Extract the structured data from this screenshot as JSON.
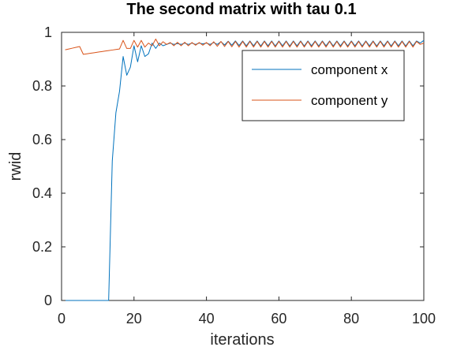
{
  "chart_data": {
    "type": "line",
    "title": "The second matrix with tau 0.1",
    "xlabel": "iterations",
    "ylabel": "rwid",
    "xlim": [
      0,
      100
    ],
    "ylim": [
      0,
      1
    ],
    "xticks": [
      "0",
      "20",
      "40",
      "60",
      "80",
      "100"
    ],
    "yticks": [
      "0",
      "0.2",
      "0.4",
      "0.6",
      "0.8",
      "1"
    ],
    "grid": false,
    "legend_position": "top-right",
    "series": [
      {
        "name": "component x",
        "color": "#0072BD",
        "points": [
          [
            0,
            0
          ],
          [
            1,
            0
          ],
          [
            2,
            0
          ],
          [
            3,
            0
          ],
          [
            4,
            0
          ],
          [
            5,
            0
          ],
          [
            6,
            0
          ],
          [
            7,
            0
          ],
          [
            8,
            0
          ],
          [
            9,
            0
          ],
          [
            10,
            0
          ],
          [
            11,
            0
          ],
          [
            12,
            0
          ],
          [
            13,
            0
          ],
          [
            14,
            0.52
          ],
          [
            15,
            0.7
          ],
          [
            16,
            0.78
          ],
          [
            17,
            0.91
          ],
          [
            18,
            0.84
          ],
          [
            19,
            0.87
          ],
          [
            20,
            0.95
          ],
          [
            21,
            0.89
          ],
          [
            22,
            0.95
          ],
          [
            23,
            0.91
          ],
          [
            24,
            0.92
          ],
          [
            25,
            0.96
          ],
          [
            26,
            0.94
          ],
          [
            27,
            0.96
          ],
          [
            28,
            0.95
          ],
          [
            29,
            0.955
          ],
          [
            30,
            0.96
          ],
          [
            31,
            0.955
          ],
          [
            32,
            0.958
          ],
          [
            33,
            0.955
          ],
          [
            34,
            0.96
          ],
          [
            35,
            0.955
          ],
          [
            36,
            0.96
          ],
          [
            37,
            0.955
          ],
          [
            38,
            0.96
          ],
          [
            39,
            0.957
          ],
          [
            40,
            0.96
          ],
          [
            41,
            0.955
          ],
          [
            42,
            0.962
          ],
          [
            43,
            0.955
          ],
          [
            44,
            0.965
          ],
          [
            45,
            0.953
          ],
          [
            46,
            0.967
          ],
          [
            47,
            0.952
          ],
          [
            48,
            0.968
          ],
          [
            49,
            0.951
          ],
          [
            50,
            0.968
          ],
          [
            51,
            0.95
          ],
          [
            52,
            0.968
          ],
          [
            53,
            0.95
          ],
          [
            54,
            0.968
          ],
          [
            55,
            0.949
          ],
          [
            56,
            0.968
          ],
          [
            57,
            0.95
          ],
          [
            58,
            0.968
          ],
          [
            59,
            0.949
          ],
          [
            60,
            0.968
          ],
          [
            61,
            0.95
          ],
          [
            62,
            0.968
          ],
          [
            63,
            0.949
          ],
          [
            64,
            0.968
          ],
          [
            65,
            0.95
          ],
          [
            66,
            0.968
          ],
          [
            67,
            0.949
          ],
          [
            68,
            0.968
          ],
          [
            69,
            0.95
          ],
          [
            70,
            0.968
          ],
          [
            71,
            0.949
          ],
          [
            72,
            0.968
          ],
          [
            73,
            0.95
          ],
          [
            74,
            0.968
          ],
          [
            75,
            0.949
          ],
          [
            76,
            0.968
          ],
          [
            77,
            0.95
          ],
          [
            78,
            0.968
          ],
          [
            79,
            0.949
          ],
          [
            80,
            0.968
          ],
          [
            81,
            0.95
          ],
          [
            82,
            0.968
          ],
          [
            83,
            0.949
          ],
          [
            84,
            0.968
          ],
          [
            85,
            0.95
          ],
          [
            86,
            0.968
          ],
          [
            87,
            0.949
          ],
          [
            88,
            0.968
          ],
          [
            89,
            0.95
          ],
          [
            90,
            0.968
          ],
          [
            91,
            0.949
          ],
          [
            92,
            0.968
          ],
          [
            93,
            0.95
          ],
          [
            94,
            0.968
          ],
          [
            95,
            0.949
          ],
          [
            96,
            0.968
          ],
          [
            97,
            0.95
          ],
          [
            98,
            0.968
          ],
          [
            99,
            0.96
          ],
          [
            100,
            0.97
          ]
        ]
      },
      {
        "name": "component y",
        "color": "#D95319",
        "points": [
          [
            1,
            0.935
          ],
          [
            2,
            0.938
          ],
          [
            3,
            0.941
          ],
          [
            4,
            0.944
          ],
          [
            5,
            0.947
          ],
          [
            6,
            0.918
          ],
          [
            7,
            0.92
          ],
          [
            8,
            0.922
          ],
          [
            9,
            0.924
          ],
          [
            10,
            0.926
          ],
          [
            11,
            0.928
          ],
          [
            12,
            0.93
          ],
          [
            13,
            0.932
          ],
          [
            14,
            0.934
          ],
          [
            15,
            0.936
          ],
          [
            16,
            0.938
          ],
          [
            17,
            0.97
          ],
          [
            18,
            0.94
          ],
          [
            19,
            0.94
          ],
          [
            20,
            0.97
          ],
          [
            21,
            0.945
          ],
          [
            22,
            0.97
          ],
          [
            23,
            0.945
          ],
          [
            24,
            0.96
          ],
          [
            25,
            0.95
          ],
          [
            26,
            0.975
          ],
          [
            27,
            0.95
          ],
          [
            28,
            0.965
          ],
          [
            29,
            0.955
          ],
          [
            30,
            0.962
          ],
          [
            31,
            0.95
          ],
          [
            32,
            0.963
          ],
          [
            33,
            0.95
          ],
          [
            34,
            0.963
          ],
          [
            35,
            0.95
          ],
          [
            36,
            0.962
          ],
          [
            37,
            0.952
          ],
          [
            38,
            0.962
          ],
          [
            39,
            0.952
          ],
          [
            40,
            0.962
          ],
          [
            41,
            0.95
          ],
          [
            42,
            0.965
          ],
          [
            43,
            0.948
          ],
          [
            44,
            0.966
          ],
          [
            45,
            0.947
          ],
          [
            46,
            0.966
          ],
          [
            47,
            0.946
          ],
          [
            48,
            0.966
          ],
          [
            49,
            0.945
          ],
          [
            50,
            0.966
          ],
          [
            51,
            0.945
          ],
          [
            52,
            0.966
          ],
          [
            53,
            0.945
          ],
          [
            54,
            0.966
          ],
          [
            55,
            0.945
          ],
          [
            56,
            0.966
          ],
          [
            57,
            0.945
          ],
          [
            58,
            0.966
          ],
          [
            59,
            0.945
          ],
          [
            60,
            0.966
          ],
          [
            61,
            0.945
          ],
          [
            62,
            0.966
          ],
          [
            63,
            0.945
          ],
          [
            64,
            0.966
          ],
          [
            65,
            0.945
          ],
          [
            66,
            0.966
          ],
          [
            67,
            0.945
          ],
          [
            68,
            0.966
          ],
          [
            69,
            0.945
          ],
          [
            70,
            0.966
          ],
          [
            71,
            0.945
          ],
          [
            72,
            0.966
          ],
          [
            73,
            0.945
          ],
          [
            74,
            0.966
          ],
          [
            75,
            0.945
          ],
          [
            76,
            0.966
          ],
          [
            77,
            0.945
          ],
          [
            78,
            0.966
          ],
          [
            79,
            0.945
          ],
          [
            80,
            0.966
          ],
          [
            81,
            0.945
          ],
          [
            82,
            0.966
          ],
          [
            83,
            0.945
          ],
          [
            84,
            0.966
          ],
          [
            85,
            0.945
          ],
          [
            86,
            0.966
          ],
          [
            87,
            0.945
          ],
          [
            88,
            0.966
          ],
          [
            89,
            0.945
          ],
          [
            90,
            0.966
          ],
          [
            91,
            0.945
          ],
          [
            92,
            0.966
          ],
          [
            93,
            0.945
          ],
          [
            94,
            0.966
          ],
          [
            95,
            0.945
          ],
          [
            96,
            0.966
          ],
          [
            97,
            0.945
          ],
          [
            98,
            0.966
          ],
          [
            99,
            0.955
          ],
          [
            100,
            0.96
          ]
        ]
      }
    ]
  }
}
